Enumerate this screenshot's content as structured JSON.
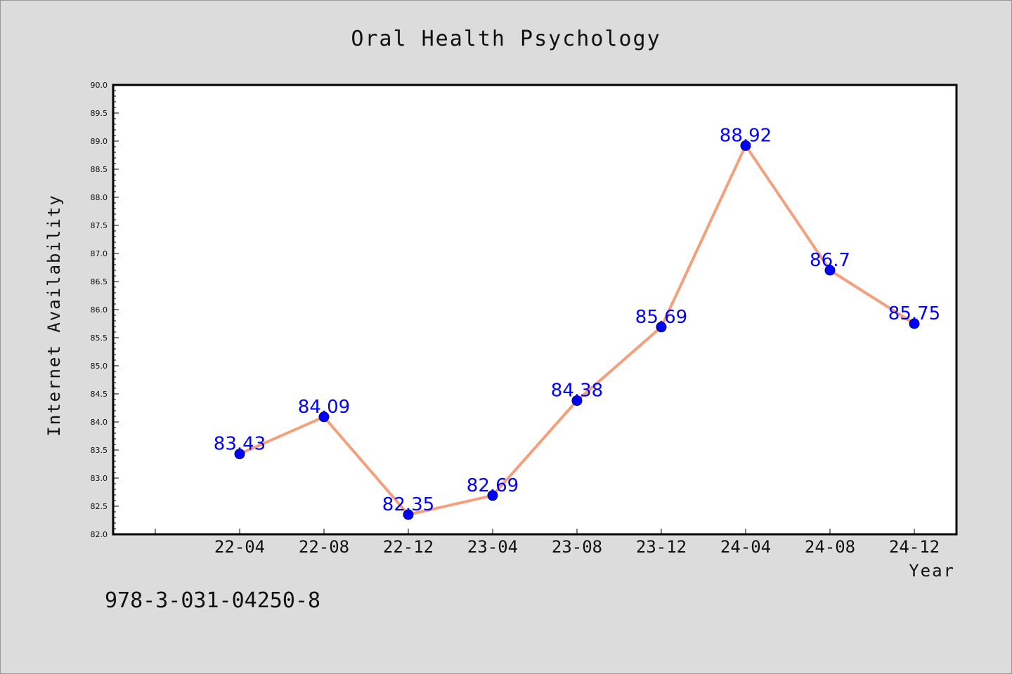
{
  "chart_data": {
    "type": "line",
    "title": "Oral Health Psychology",
    "xlabel": "Year",
    "ylabel": "Internet Availability",
    "categories": [
      "22-04",
      "22-08",
      "22-12",
      "23-04",
      "23-08",
      "23-12",
      "24-04",
      "24-08",
      "24-12"
    ],
    "series": [
      {
        "values": [
          83.43,
          84.09,
          82.35,
          82.69,
          84.38,
          85.69,
          88.92,
          86.7,
          85.75
        ]
      }
    ],
    "data_labels": [
      "83.43",
      "84.09",
      "82.35",
      "82.69",
      "84.38",
      "85.69",
      "88.92",
      "86.7",
      "85.75"
    ],
    "ylim": [
      82.0,
      90.0
    ],
    "yticks": [
      "82.0",
      "82.5",
      "83.0",
      "83.5",
      "84.0",
      "84.5",
      "85.0",
      "85.5",
      "86.0",
      "86.5",
      "87.0",
      "87.5",
      "88.0",
      "88.5",
      "89.0",
      "89.5",
      "90.0"
    ],
    "grid": false,
    "legend": "none",
    "colors": {
      "line": "#f4a07c",
      "marker": "#0000ff",
      "label": "#0000ff",
      "plot_bg": "#ffffff",
      "page_bg": "#dcdcdc"
    }
  },
  "footer": {
    "isbn": "978-3-031-04250-8"
  }
}
